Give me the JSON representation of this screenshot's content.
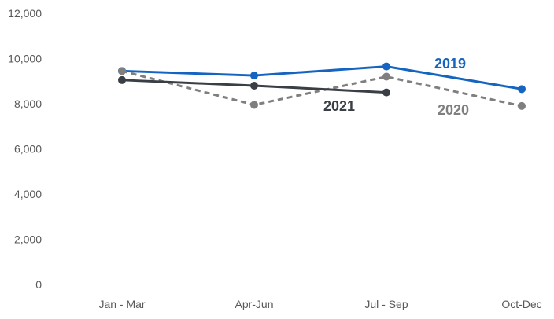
{
  "chart_data": {
    "type": "line",
    "categories": [
      "Jan - Mar",
      "Apr-Jun",
      "Jul - Sep",
      "Oct-Dec"
    ],
    "ylim": [
      0,
      12000
    ],
    "y_ticks": [
      0,
      2000,
      4000,
      6000,
      8000,
      10000,
      12000
    ],
    "y_tick_labels": [
      "0",
      "2,000",
      "4,000",
      "6,000",
      "8,000",
      "10,000",
      "12,000"
    ],
    "grid": false,
    "title": "",
    "xlabel": "",
    "ylabel": "",
    "series": [
      {
        "name": "2019",
        "values": [
          9450,
          9250,
          9650,
          8650
        ],
        "color": "#1565C0",
        "dash": "solid"
      },
      {
        "name": "2020",
        "values": [
          9450,
          7950,
          9200,
          7900
        ],
        "color": "#7F7F7F",
        "dash": "dashed"
      },
      {
        "name": "2021",
        "values": [
          9050,
          8800,
          8500,
          null
        ],
        "color": "#3A3F46",
        "dash": "solid"
      }
    ]
  }
}
